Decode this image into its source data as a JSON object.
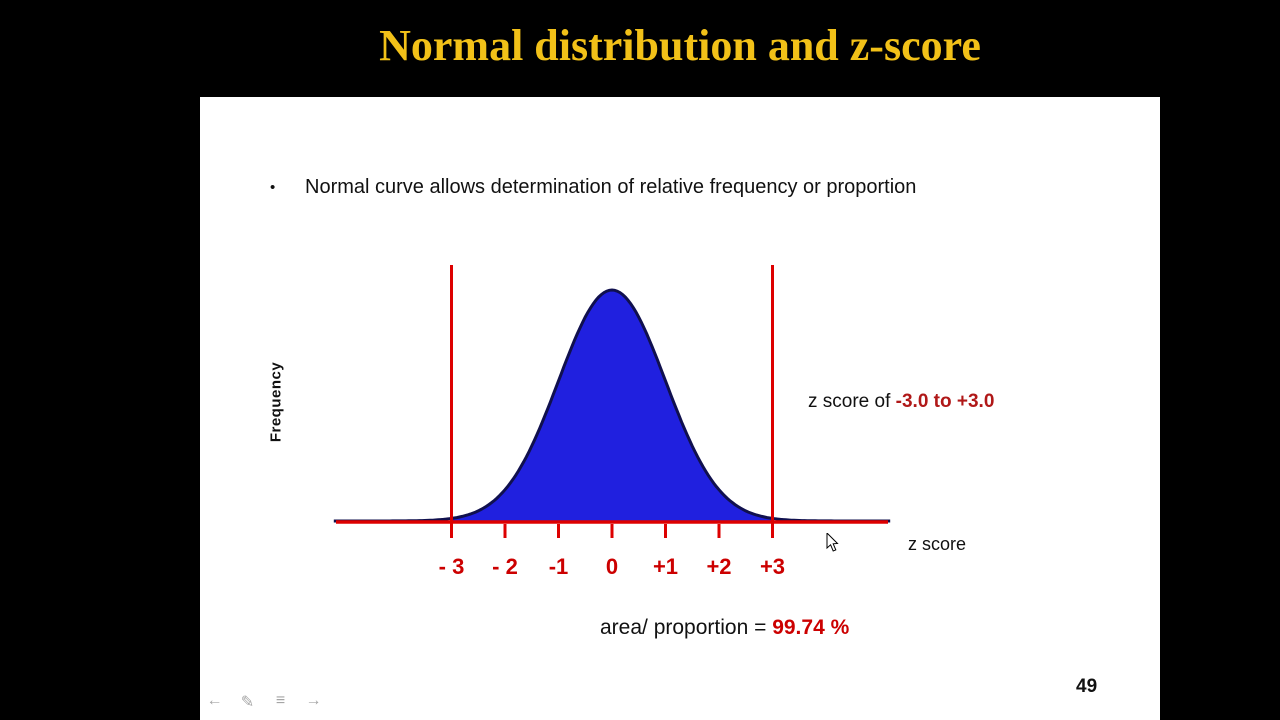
{
  "title": "Normal distribution and z-score",
  "slide": {
    "bullet_marker": "•",
    "bullet_text": "Normal curve allows determination of relative frequency or proportion",
    "page_number": "49"
  },
  "annotations": {
    "zscore_prefix": "z score of ",
    "zscore_range": "-3.0 to +3.0",
    "area_prefix": "area/ proportion = ",
    "area_value": "99.74 %"
  },
  "chart_data": {
    "type": "area",
    "distribution": "normal",
    "mean": 0,
    "sd": 1,
    "x_range": [
      -5.2,
      5.2
    ],
    "shaded_region": [
      -3,
      3
    ],
    "vertical_lines": [
      -3,
      3
    ],
    "tick_values": [
      -3,
      -2,
      -1,
      0,
      1,
      2,
      3
    ],
    "tick_labels": [
      "- 3",
      "- 2",
      "-1",
      "0",
      "+1",
      "+2",
      "+3"
    ],
    "ylabel": "Frequency",
    "xlabel": "z score",
    "grid": false,
    "legend": false,
    "peak_value": 0.3989,
    "area_under_shaded_region_pct": 99.74
  },
  "colors": {
    "background": "#000000",
    "slide_bg": "#ffffff",
    "title": "#f2c118",
    "axis_red": "#dd0000",
    "tick_label_red": "#cc0000",
    "range_red": "#b01818",
    "area_red": "#cc0000",
    "curve_outline": "#10104e",
    "curve_fill": "#2020df",
    "text": "#111111"
  },
  "presenter_nav": {
    "prev_icon": "←",
    "pen_icon": "✎",
    "menu_icon": "≡",
    "next_icon": "→"
  }
}
